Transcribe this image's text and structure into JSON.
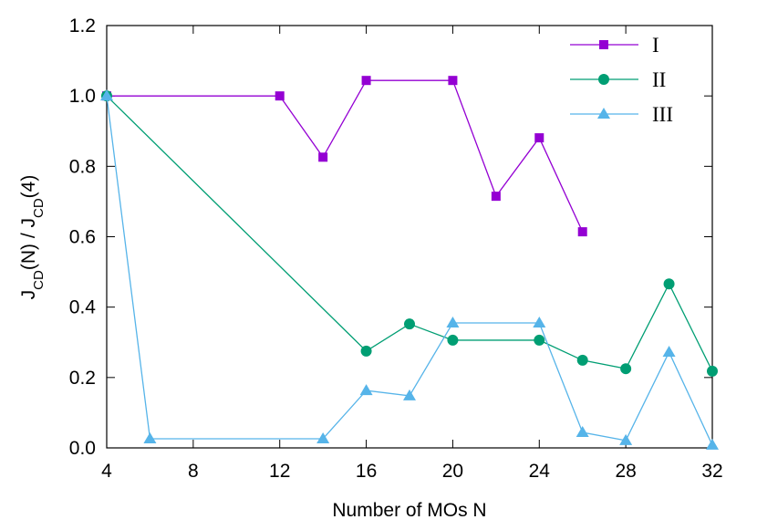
{
  "chart_data": {
    "type": "line",
    "x_label": "Number of MOs N",
    "y_label_parts": [
      {
        "text": "J"
      },
      {
        "text": "CD",
        "sub": true
      },
      {
        "text": "(N) / J"
      },
      {
        "text": "CD",
        "sub": true
      },
      {
        "text": "(4)"
      }
    ],
    "xlim": [
      4,
      32
    ],
    "xticks": [
      4,
      8,
      12,
      16,
      20,
      24,
      28,
      32
    ],
    "ylim": [
      0,
      1.2
    ],
    "yticks": [
      {
        "value": 0,
        "label": "0.0"
      },
      0.2,
      0.4,
      0.6,
      0.8,
      {
        "value": 1,
        "label": "1.0"
      },
      1.2
    ],
    "legend": "top-right",
    "series": [
      {
        "name": "I",
        "color": "#9400d3",
        "marker": "square",
        "x": [
          4,
          12,
          14,
          16,
          20,
          22,
          24,
          26
        ],
        "values": [
          1.0,
          1.0,
          0.826,
          1.044,
          1.044,
          0.715,
          0.881,
          0.614
        ]
      },
      {
        "name": "II",
        "color": "#009e73",
        "marker": "circle",
        "x": [
          4,
          16,
          18,
          20,
          24,
          26,
          28,
          30,
          32
        ],
        "values": [
          1.0,
          0.275,
          0.352,
          0.306,
          0.306,
          0.249,
          0.225,
          0.466,
          0.218
        ]
      },
      {
        "name": "III",
        "color": "#56b4e9",
        "marker": "triangle",
        "x": [
          4,
          6,
          14,
          16,
          18,
          20,
          24,
          26,
          28,
          30,
          32
        ],
        "values": [
          1.0,
          0.026,
          0.026,
          0.163,
          0.148,
          0.355,
          0.355,
          0.044,
          0.021,
          0.272,
          0.008
        ]
      }
    ]
  }
}
